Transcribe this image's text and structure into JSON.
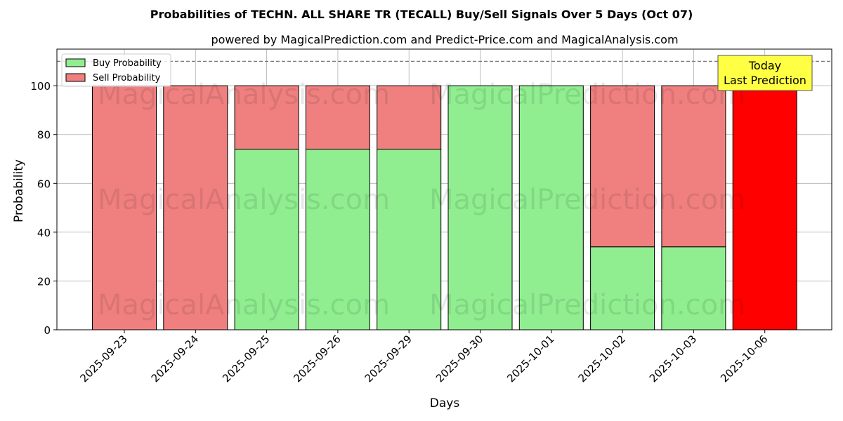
{
  "chart_data": {
    "type": "bar",
    "title": "Probabilities of TECHN. ALL SHARE TR (TECALL) Buy/Sell Signals Over 5 Days (Oct 07)",
    "subtitle": "powered by MagicalPrediction.com and Predict-Price.com and MagicalAnalysis.com",
    "xlabel": "Days",
    "ylabel": "Probability",
    "ylim": [
      0,
      115
    ],
    "yticks": [
      0,
      20,
      40,
      60,
      80,
      100
    ],
    "reference_line": 110,
    "grid": true,
    "stacked": true,
    "legend_position": "top-left",
    "categories": [
      "2025-09-23",
      "2025-09-24",
      "2025-09-25",
      "2025-09-26",
      "2025-09-29",
      "2025-09-30",
      "2025-10-01",
      "2025-10-02",
      "2025-10-03",
      "2025-10-06"
    ],
    "series": [
      {
        "name": "Buy Probability",
        "color": "#90ee90",
        "values": [
          0,
          0,
          74,
          74,
          74,
          100,
          100,
          34,
          34,
          0
        ]
      },
      {
        "name": "Sell Probability",
        "color": "#f08080",
        "values": [
          100,
          100,
          26,
          26,
          26,
          0,
          0,
          66,
          66,
          100
        ]
      }
    ],
    "highlight": {
      "category": "2025-10-06",
      "color": "#ff0000"
    },
    "annotation": {
      "line1": "Today",
      "line2": "Last Prediction",
      "color": "#ffff44"
    },
    "watermarks": [
      "MagicalAnalysis.com",
      "MagicalPrediction.com"
    ]
  }
}
